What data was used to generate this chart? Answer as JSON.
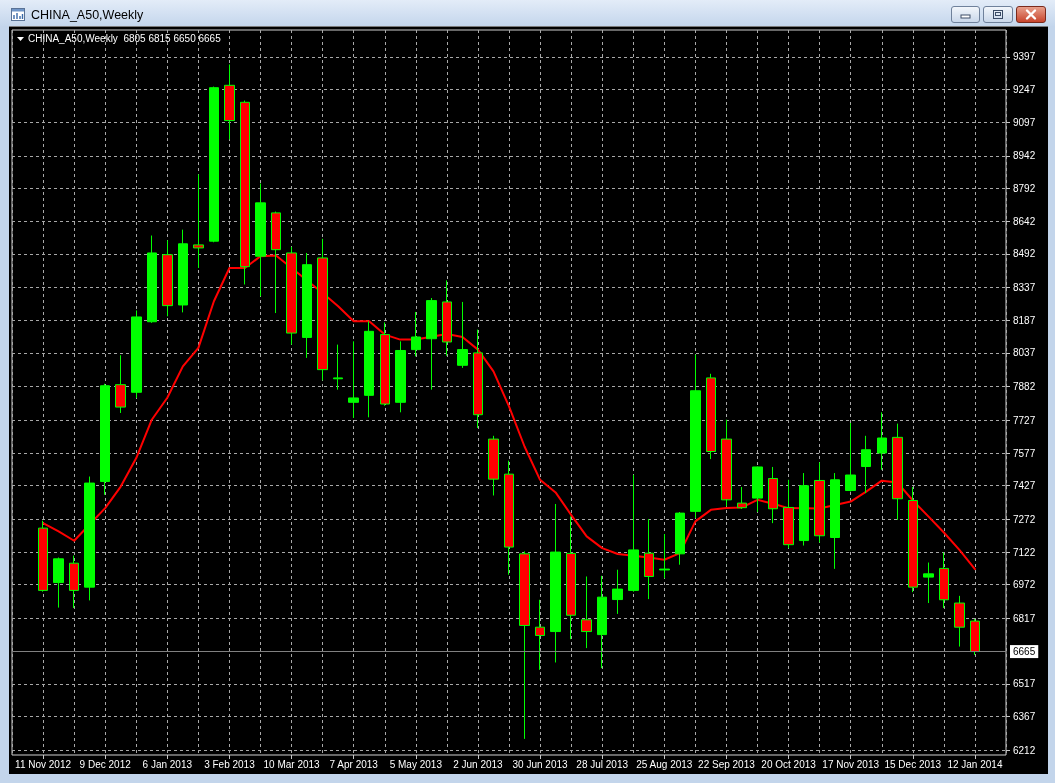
{
  "chart_data": {
    "type": "candlestick",
    "title": "CHINA_A50,Weekly",
    "subtitle": "CHINA_A50,Weekly  6805 6815 6650 6665",
    "categories": [
      "11 Nov 2012",
      null,
      null,
      null,
      "9 Dec 2012",
      null,
      null,
      null,
      "6 Jan 2013",
      null,
      null,
      null,
      "3 Feb 2013",
      null,
      null,
      null,
      "10 Mar 2013",
      null,
      null,
      null,
      "7 Apr 2013",
      null,
      null,
      null,
      "5 May 2013",
      null,
      null,
      null,
      "2 Jun 2013",
      null,
      null,
      null,
      "30 Jun 2013",
      null,
      null,
      null,
      "28 Jul 2013",
      null,
      null,
      null,
      "25 Aug 2013",
      null,
      null,
      null,
      "22 Sep 2013",
      null,
      null,
      null,
      "20 Oct 2013",
      null,
      null,
      null,
      "17 Nov 2013",
      null,
      null,
      null,
      "15 Dec 2013",
      null,
      null,
      null,
      "12 Jan 2014"
    ],
    "ohlc": [
      [
        7232,
        7266,
        6940,
        6946
      ],
      [
        6982,
        7097,
        6867,
        7091
      ],
      [
        7071,
        7106,
        6865,
        6946
      ],
      [
        6961,
        7469,
        6900,
        7439
      ],
      [
        7446,
        7895,
        7385,
        7886
      ],
      [
        7891,
        8026,
        7761,
        7788
      ],
      [
        7856,
        8232,
        7830,
        8202
      ],
      [
        8180,
        8576,
        8175,
        8496
      ],
      [
        8488,
        8554,
        8205,
        8254
      ],
      [
        8257,
        8603,
        8223,
        8538
      ],
      [
        8533,
        8857,
        8427,
        8519
      ],
      [
        8550,
        9260,
        8545,
        9255
      ],
      [
        9266,
        9362,
        9017,
        9104
      ],
      [
        9188,
        9196,
        8351,
        8433
      ],
      [
        8481,
        8815,
        8297,
        8726
      ],
      [
        8680,
        8686,
        8220,
        8511
      ],
      [
        8496,
        8524,
        8075,
        8128
      ],
      [
        8108,
        8496,
        8014,
        8442
      ],
      [
        8473,
        8561,
        7911,
        7960
      ],
      [
        7918,
        8075,
        7868,
        7922
      ],
      [
        7810,
        8090,
        7738,
        7830
      ],
      [
        7842,
        8182,
        7741,
        8136
      ],
      [
        8121,
        8177,
        7794,
        7802
      ],
      [
        7810,
        8090,
        7764,
        8048
      ],
      [
        8052,
        8225,
        8021,
        8110
      ],
      [
        8102,
        8289,
        7868,
        8277
      ],
      [
        8271,
        8370,
        8024,
        8087
      ],
      [
        7980,
        8271,
        7968,
        8052
      ],
      [
        8037,
        8144,
        7692,
        7753
      ],
      [
        7641,
        7656,
        7382,
        7457
      ],
      [
        7480,
        7542,
        7018,
        7145
      ],
      [
        7114,
        7125,
        6264,
        6785
      ],
      [
        6777,
        6903,
        6581,
        6739
      ],
      [
        6757,
        7343,
        6615,
        7122
      ],
      [
        7116,
        7286,
        6722,
        6832
      ],
      [
        6811,
        7010,
        6681,
        6757
      ],
      [
        6743,
        7013,
        6589,
        6915
      ],
      [
        6904,
        7041,
        6838,
        6952
      ],
      [
        6946,
        7477,
        6940,
        7132
      ],
      [
        7117,
        7274,
        6906,
        7010
      ],
      [
        7040,
        7205,
        7002,
        7044
      ],
      [
        7114,
        7306,
        7064,
        7301
      ],
      [
        7309,
        8029,
        7278,
        7863
      ],
      [
        7922,
        7941,
        7549,
        7584
      ],
      [
        7641,
        7730,
        7332,
        7362
      ],
      [
        7347,
        7421,
        7320,
        7326
      ],
      [
        7370,
        7515,
        7306,
        7513
      ],
      [
        7460,
        7513,
        7255,
        7321
      ],
      [
        7327,
        7454,
        7140,
        7156
      ],
      [
        7175,
        7485,
        7152,
        7427
      ],
      [
        7451,
        7534,
        7166,
        7197
      ],
      [
        7189,
        7485,
        7045,
        7454
      ],
      [
        7405,
        7715,
        7400,
        7476
      ],
      [
        7515,
        7656,
        7393,
        7592
      ],
      [
        7577,
        7764,
        7500,
        7646
      ],
      [
        7649,
        7712,
        7270,
        7367
      ],
      [
        7359,
        7421,
        6938,
        6961
      ],
      [
        7007,
        7074,
        6888,
        7022
      ],
      [
        7047,
        7120,
        6865,
        6903
      ],
      [
        6888,
        6921,
        6688,
        6777
      ],
      [
        6805,
        6815,
        6650,
        6665
      ]
    ],
    "color": "#00ff00",
    "colors": [
      "#ff0000",
      "#00ff00",
      "#ff0000",
      "#00ff00",
      "#00ff00",
      "#ff0000",
      "#00ff00",
      "#00ff00",
      "#ff0000",
      "#00ff00",
      "#ff0000",
      "#00ff00",
      "#ff0000",
      "#ff0000",
      "#00ff00",
      "#ff0000",
      "#ff0000",
      "#00ff00",
      "#ff0000",
      "#00ff00",
      "#00ff00",
      "#00ff00",
      "#ff0000",
      "#00ff00",
      "#00ff00",
      "#00ff00",
      "#ff0000",
      "#00ff00",
      "#ff0000",
      "#ff0000",
      "#ff0000",
      "#ff0000",
      "#ff0000",
      "#00ff00",
      "#ff0000",
      "#ff0000",
      "#00ff00",
      "#00ff00",
      "#00ff00",
      "#ff0000",
      "#00ff00",
      "#00ff00",
      "#00ff00",
      "#ff0000",
      "#ff0000",
      "#ff0000",
      "#00ff00",
      "#ff0000",
      "#ff0000",
      "#00ff00",
      "#ff0000",
      "#00ff00",
      "#00ff00",
      "#00ff00",
      "#00ff00",
      "#ff0000",
      "#ff0000",
      "#00ff00",
      "#ff0000",
      "#ff0000",
      "#ff0000"
    ],
    "series": [
      {
        "type": "line",
        "color": "#ff0000",
        "values": [
          7255,
          7217,
          7174,
          null,
          7324,
          7423,
          7554,
          7730,
          7831,
          7975,
          8060,
          8274,
          8427,
          8427,
          8481,
          8484,
          8427,
          null,
          8312,
          8251,
          8182,
          8182,
          8121,
          8098,
          8098,
          null,
          8124,
          8110,
          8052,
          7952,
          7791,
          7607,
          7454,
          7396,
          7293,
          7194,
          7140,
          7113,
          null,
          7097,
          7087,
          7117,
          7263,
          7316,
          7324,
          7327,
          7362,
          7344,
          7324,
          null,
          7322,
          null,
          7354,
          7400,
          7450,
          7442,
          7359,
          7286,
          7212,
          7132,
          7044
        ]
      }
    ],
    "ylim": [
      6190,
      9520
    ],
    "yticks": [
      9397,
      9247,
      9097,
      8942,
      8792,
      8642,
      8492,
      8337,
      8187,
      8037,
      7882,
      7727,
      7577,
      7427,
      7272,
      7122,
      6972,
      6817,
      6517,
      6367,
      6212
    ],
    "ref_lines": [
      {
        "axis": "y",
        "value": 6665,
        "label": "6665",
        "color": "#808080"
      }
    ],
    "grid": true,
    "marker": "none",
    "line_style": "solid"
  }
}
